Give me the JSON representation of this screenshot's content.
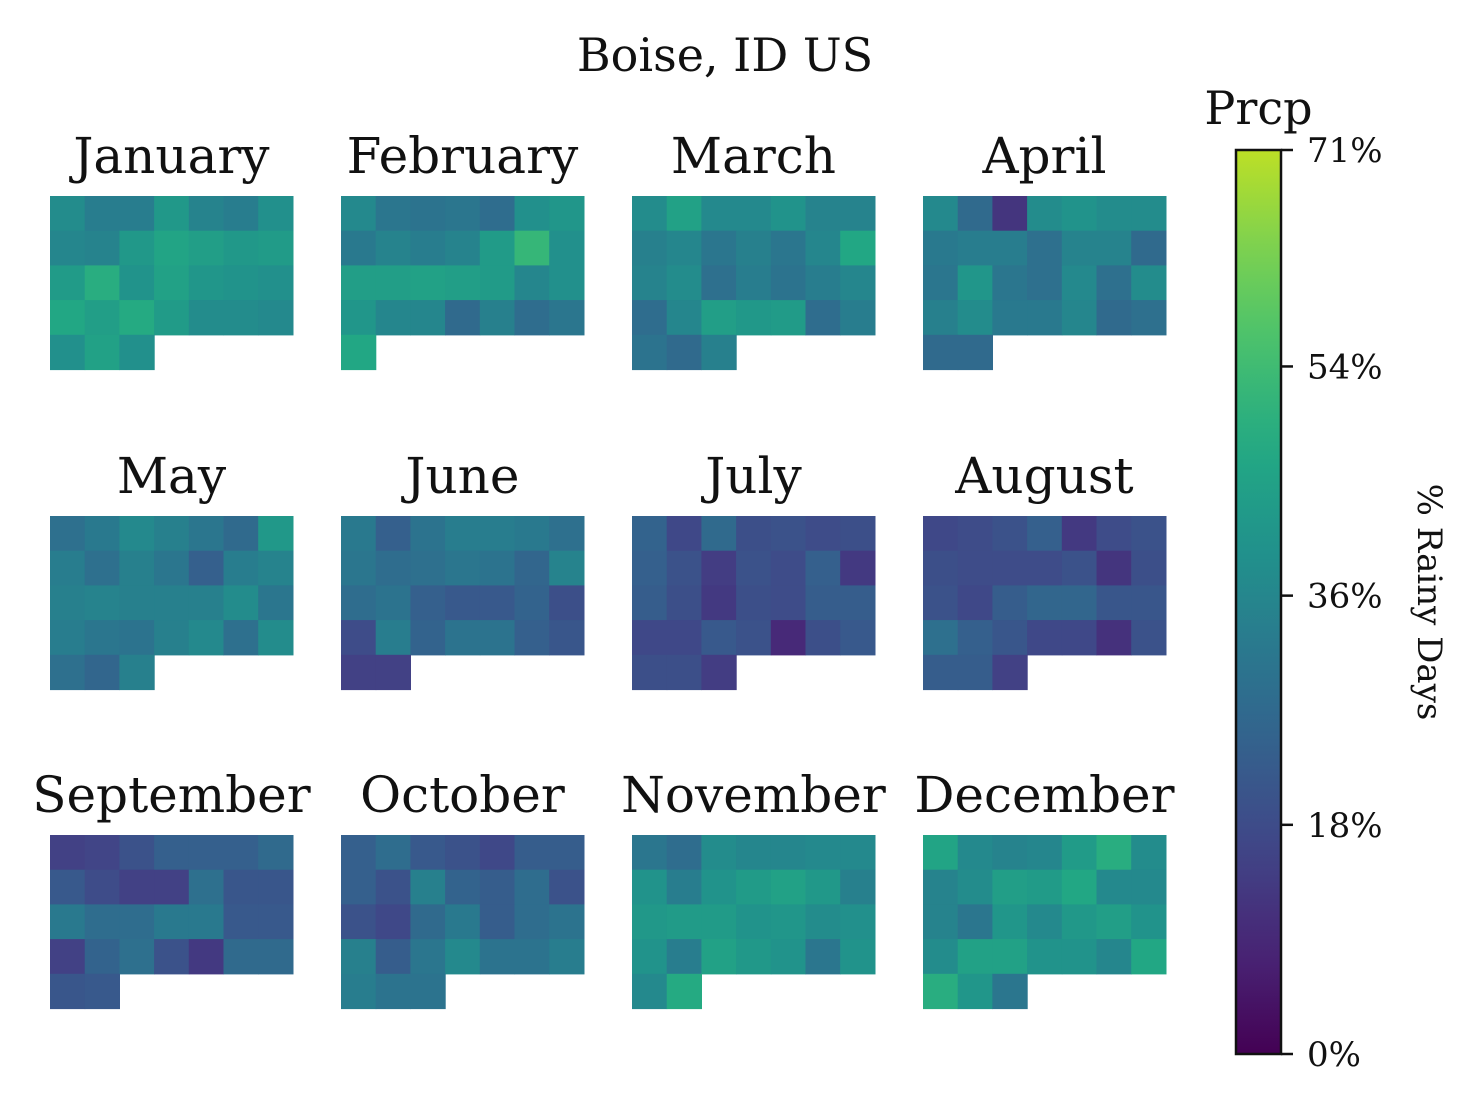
{
  "chart_data": {
    "type": "heatmap",
    "title": "Boise, ID US",
    "colorbar": {
      "title": "Prcp",
      "label": "% Rainy Days",
      "colormap": "viridis",
      "range": [
        0,
        71
      ],
      "ticks": [
        0,
        18,
        36,
        54,
        71
      ],
      "tick_labels": [
        "0%",
        "18%",
        "36%",
        "54%",
        "71%"
      ]
    },
    "months": [
      {
        "name": "January",
        "first_weekday": 0,
        "values": [
          38,
          33,
          33,
          42,
          35,
          33,
          39,
          36,
          35,
          42,
          46,
          44,
          42,
          43,
          43,
          49,
          40,
          45,
          41,
          40,
          39,
          47,
          44,
          48,
          43,
          38,
          38,
          37,
          39,
          45,
          39
        ]
      },
      {
        "name": "February",
        "first_weekday": 0,
        "values": [
          37,
          31,
          30,
          31,
          28,
          39,
          41,
          32,
          35,
          33,
          35,
          43,
          52,
          39,
          44,
          44,
          45,
          44,
          43,
          36,
          39,
          41,
          36,
          36,
          27,
          34,
          28,
          31,
          47
        ]
      },
      {
        "name": "March",
        "first_weekday": 0,
        "values": [
          38,
          45,
          37,
          37,
          40,
          35,
          35,
          34,
          36,
          31,
          34,
          31,
          36,
          47,
          35,
          38,
          29,
          33,
          30,
          33,
          36,
          28,
          36,
          44,
          42,
          43,
          28,
          33,
          30,
          27,
          34
        ]
      },
      {
        "name": "April",
        "first_weekday": 0,
        "values": [
          37,
          27,
          12,
          38,
          40,
          38,
          38,
          32,
          33,
          33,
          29,
          35,
          35,
          27,
          31,
          41,
          31,
          29,
          37,
          29,
          38,
          34,
          38,
          32,
          32,
          36,
          27,
          29,
          27,
          27
        ]
      },
      {
        "name": "May",
        "first_weekday": 0,
        "values": [
          29,
          32,
          37,
          34,
          31,
          27,
          42,
          33,
          29,
          34,
          31,
          24,
          33,
          35,
          34,
          35,
          34,
          34,
          34,
          38,
          31,
          33,
          31,
          30,
          34,
          37,
          29,
          38,
          29,
          26,
          34
        ]
      },
      {
        "name": "June",
        "first_weekday": 0,
        "values": [
          32,
          24,
          30,
          33,
          33,
          32,
          29,
          31,
          28,
          29,
          31,
          30,
          26,
          35,
          28,
          30,
          24,
          22,
          22,
          25,
          19,
          18,
          33,
          25,
          30,
          30,
          24,
          21,
          15,
          15
        ]
      },
      {
        "name": "July",
        "first_weekday": 0,
        "values": [
          25,
          17,
          27,
          19,
          20,
          18,
          19,
          24,
          20,
          14,
          20,
          18,
          24,
          13,
          23,
          19,
          13,
          19,
          18,
          23,
          23,
          17,
          17,
          22,
          20,
          9,
          19,
          22,
          19,
          19,
          14
        ]
      },
      {
        "name": "August",
        "first_weekday": 0,
        "values": [
          17,
          18,
          20,
          24,
          13,
          18,
          20,
          19,
          18,
          18,
          18,
          20,
          12,
          19,
          20,
          17,
          23,
          26,
          26,
          21,
          21,
          29,
          24,
          21,
          17,
          17,
          11,
          20,
          23,
          23,
          15
        ]
      },
      {
        "name": "September",
        "first_weekday": 0,
        "values": [
          15,
          16,
          20,
          24,
          24,
          24,
          27,
          22,
          18,
          15,
          15,
          29,
          21,
          21,
          32,
          28,
          28,
          32,
          32,
          22,
          22,
          15,
          25,
          29,
          20,
          13,
          27,
          27,
          21,
          22
        ]
      },
      {
        "name": "October",
        "first_weekday": 0,
        "values": [
          24,
          28,
          22,
          20,
          17,
          23,
          23,
          24,
          20,
          34,
          25,
          23,
          28,
          20,
          20,
          17,
          27,
          32,
          23,
          28,
          30,
          34,
          23,
          31,
          37,
          30,
          30,
          33,
          33,
          30,
          30
        ]
      },
      {
        "name": "November",
        "first_weekday": 0,
        "values": [
          31,
          28,
          38,
          36,
          36,
          37,
          37,
          40,
          33,
          40,
          43,
          45,
          42,
          34,
          42,
          43,
          43,
          40,
          41,
          38,
          39,
          40,
          33,
          45,
          42,
          40,
          31,
          40,
          37,
          48
        ]
      },
      {
        "name": "December",
        "first_weekday": 0,
        "values": [
          46,
          37,
          35,
          36,
          43,
          49,
          38,
          35,
          38,
          44,
          43,
          47,
          37,
          37,
          35,
          31,
          41,
          37,
          42,
          44,
          40,
          38,
          45,
          45,
          40,
          40,
          36,
          47,
          49,
          41,
          31
        ]
      }
    ]
  }
}
